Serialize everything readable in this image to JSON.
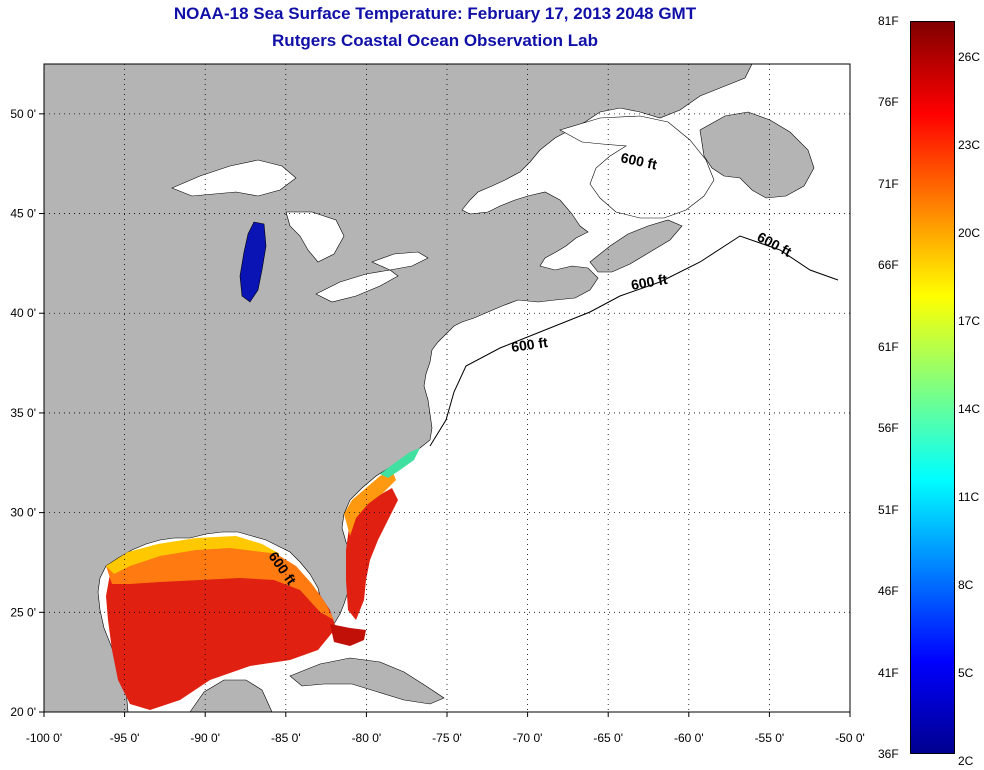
{
  "header": {
    "title": "NOAA-18 Sea Surface Temperature:  February 17, 2013 2048 GMT",
    "subtitle": "Rutgers Coastal Ocean Observation Lab"
  },
  "map": {
    "lon_labels": [
      "-100 0'",
      "-95 0'",
      "-90 0'",
      "-85 0'",
      "-80 0'",
      "-75 0'",
      "-70 0'",
      "-65 0'",
      "-60 0'",
      "-55 0'",
      "-50 0'"
    ],
    "lat_labels": [
      "20 0'",
      "25 0'",
      "30 0'",
      "35 0'",
      "40 0'",
      "45 0'",
      "50 0'"
    ],
    "lon_range": [
      -100,
      -50
    ],
    "lat_range": [
      20,
      52.5
    ],
    "contour_label": "600 ft",
    "colors": {
      "land": "#b4b4b4",
      "ocean": "#ffffff",
      "grid": "#000000"
    }
  },
  "colorbar": {
    "f_labels": [
      "81F",
      "76F",
      "71F",
      "66F",
      "61F",
      "56F",
      "51F",
      "46F",
      "41F",
      "36F"
    ],
    "c_labels": [
      "26C",
      "23C",
      "20C",
      "17C",
      "14C",
      "11C",
      "8C",
      "5C",
      "2C"
    ],
    "range_f": [
      36,
      81
    ],
    "colors": [
      "#00008f",
      "#0000ff",
      "#0080ff",
      "#00ffff",
      "#80ff80",
      "#ffff00",
      "#ff8000",
      "#ff0000",
      "#800000"
    ]
  }
}
